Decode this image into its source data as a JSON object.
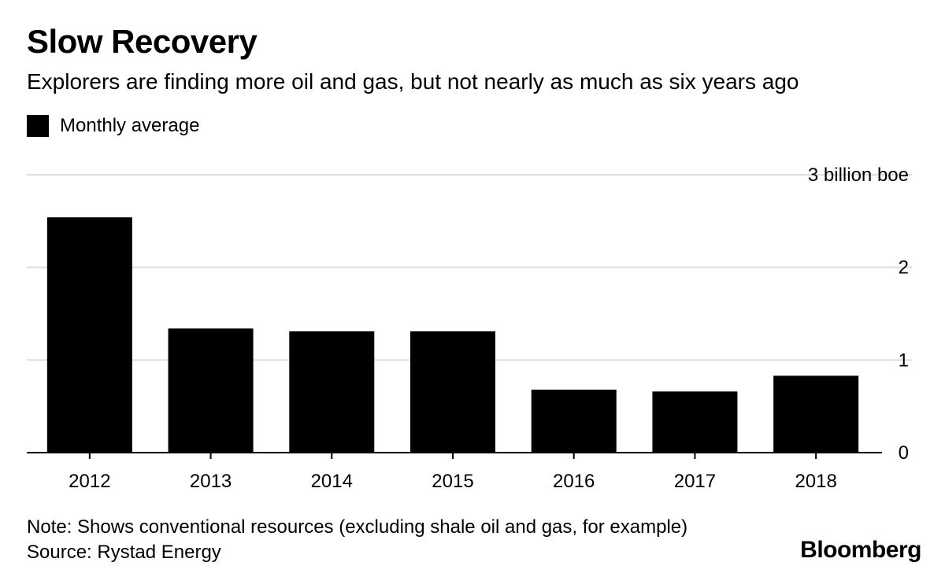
{
  "header": {
    "title": "Slow Recovery",
    "subtitle": "Explorers are finding more oil and gas, but not nearly as much as six years ago"
  },
  "legend": {
    "label": "Monthly average"
  },
  "footer": {
    "note": "Note: Shows conventional resources (excluding shale oil and gas, for example)",
    "source": "Source: Rystad Energy",
    "brand": "Bloomberg"
  },
  "colors": {
    "bar": "#000000",
    "grid": "#dddddd",
    "axis": "#000000",
    "background": "#ffffff"
  },
  "chart_data": {
    "type": "bar",
    "categories": [
      "2012",
      "2013",
      "2014",
      "2015",
      "2016",
      "2017",
      "2018"
    ],
    "series": [
      {
        "name": "Monthly average",
        "values": [
          2.54,
          1.34,
          1.31,
          1.31,
          0.68,
          0.66,
          0.83
        ]
      }
    ],
    "ylim": [
      0,
      3
    ],
    "yticks": [
      0,
      1,
      2,
      3
    ],
    "ytick_labels": [
      "0",
      "1",
      "2",
      "3 billion boe"
    ],
    "y_axis_position": "right",
    "grid": true,
    "legend_position": "top-left"
  }
}
